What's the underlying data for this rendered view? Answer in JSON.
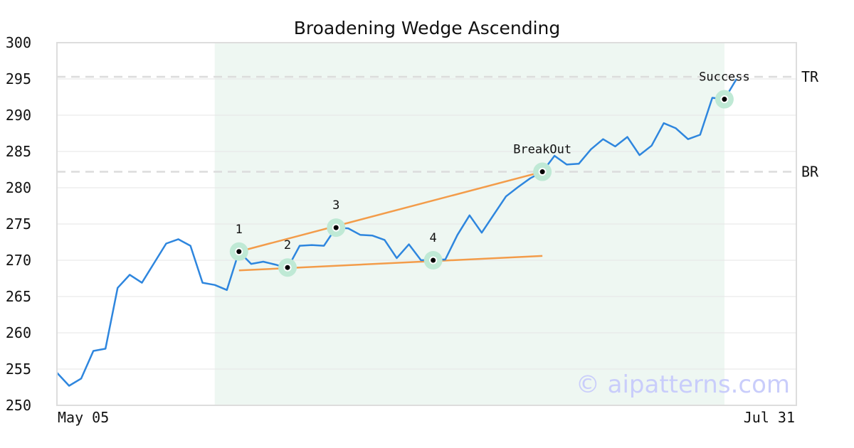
{
  "chart_data": {
    "type": "line",
    "title": "Broadening Wedge Ascending",
    "watermark": "© aipatterns.com",
    "x_start_label": "May 05",
    "x_end_label": "Jul 31",
    "ylim": [
      250,
      300
    ],
    "yticks": [
      "250",
      "255",
      "260",
      "265",
      "270",
      "275",
      "280",
      "285",
      "290",
      "295",
      "300"
    ],
    "grid": true,
    "highlight_range": [
      13,
      55
    ],
    "series": [
      {
        "color": "#2e86de",
        "values": [
          254.5,
          252.7,
          253.7,
          257.5,
          257.8,
          266.2,
          268.0,
          266.9,
          269.6,
          272.3,
          272.9,
          272.0,
          266.9,
          266.6,
          265.9,
          271.2,
          269.5,
          269.8,
          269.4,
          268.9,
          272.0,
          272.1,
          272.0,
          274.5,
          274.4,
          273.5,
          273.4,
          272.8,
          270.3,
          272.2,
          270.0,
          270.1,
          270.1,
          273.5,
          276.2,
          273.8,
          276.3,
          278.8,
          280.1,
          281.3,
          282.2,
          284.4,
          283.2,
          283.3,
          285.3,
          286.7,
          285.7,
          287.0,
          284.5,
          285.8,
          288.9,
          288.2,
          286.7,
          287.3,
          292.4,
          292.2,
          295.0
        ]
      }
    ],
    "trendlines": [
      {
        "color": "#f39c4a",
        "from": [
          15,
          271.2
        ],
        "to": [
          40,
          282.2
        ]
      },
      {
        "color": "#f39c4a",
        "from": [
          15,
          268.6
        ],
        "to": [
          40,
          270.6
        ]
      }
    ],
    "reference_lines": [
      {
        "label": "TR",
        "y": 295.3
      },
      {
        "label": "BR",
        "y": 282.2
      }
    ],
    "points": [
      {
        "label": "1",
        "x": 15,
        "y": 271.2
      },
      {
        "label": "2",
        "x": 19,
        "y": 269.0
      },
      {
        "label": "3",
        "x": 23,
        "y": 274.5
      },
      {
        "label": "4",
        "x": 31,
        "y": 270.0
      },
      {
        "label": "BreakOut",
        "x": 40,
        "y": 282.2
      },
      {
        "label": "Success",
        "x": 55,
        "y": 292.2
      }
    ],
    "colors": {
      "line": "#2e86de",
      "trendline": "#f39c4a",
      "highlight": "#eef7f2",
      "marker_ring": "#bfe9d5",
      "grid": "#e6e6e6",
      "reference": "#dcdcdc"
    }
  }
}
